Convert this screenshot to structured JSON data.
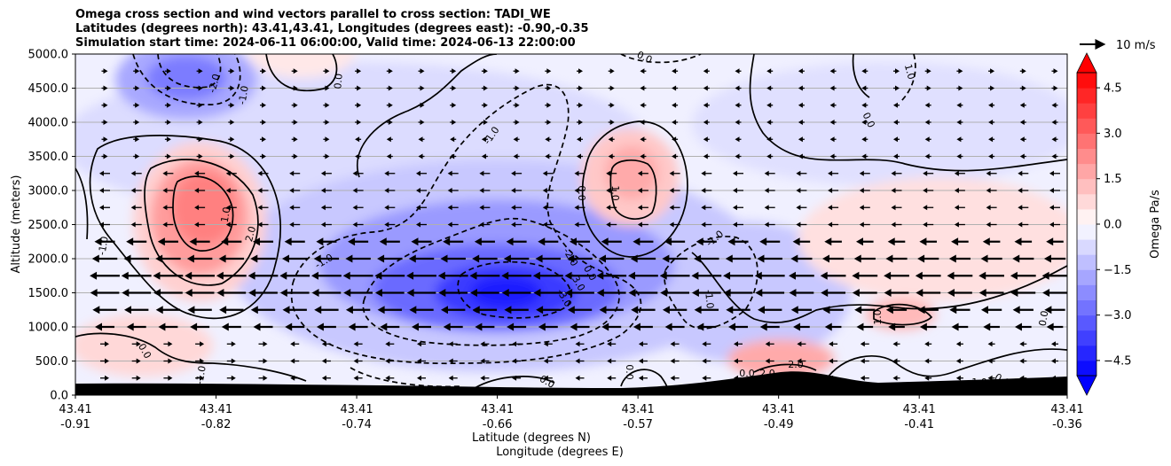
{
  "chart_data": {
    "type": "contour",
    "title_lines": [
      "Omega cross section and wind vectors parallel to cross section: TADI_WE",
      "Latitudes (degrees north): 43.41,43.41, Longitudes (degrees east): -0.90,-0.35",
      "Simulation start time: 2024-06-11 06:00:00, Valid time: 2024-06-13 22:00:00"
    ],
    "ylabel": "Altitude (meters)",
    "xlabel_lat": "Latitude (degrees N)",
    "xlabel_lon": "Longitude (degrees E)",
    "ylim": [
      0,
      5000
    ],
    "y_ticks": [
      "0.0",
      "500.0",
      "1000.0",
      "1500.0",
      "2000.0",
      "2500.0",
      "3000.0",
      "3500.0",
      "4000.0",
      "4500.0",
      "5000.0"
    ],
    "x_ticks": [
      {
        "lat": "43.41",
        "lon": "-0.91"
      },
      {
        "lat": "43.41",
        "lon": "-0.82"
      },
      {
        "lat": "43.41",
        "lon": "-0.74"
      },
      {
        "lat": "43.41",
        "lon": "-0.66"
      },
      {
        "lat": "43.41",
        "lon": "-0.57"
      },
      {
        "lat": "43.41",
        "lon": "-0.49"
      },
      {
        "lat": "43.41",
        "lon": "-0.41"
      },
      {
        "lat": "43.41",
        "lon": "-0.36"
      }
    ],
    "x_tick_fracs": [
      0,
      0.1418,
      0.2836,
      0.4254,
      0.5672,
      0.709,
      0.8508,
      1.0
    ],
    "colorbar": {
      "label": "Omega Pa/s",
      "range": [
        -5,
        5
      ],
      "ticks": [
        "4.5",
        "3.0",
        "1.5",
        "0.0",
        "−1.5",
        "−3.0",
        "−4.5"
      ],
      "tick_values": [
        4.5,
        3.0,
        1.5,
        0.0,
        -1.5,
        -3.0,
        -4.5
      ],
      "levels": 20,
      "extend": "both"
    },
    "quiver_key": {
      "label": "10 m/s"
    },
    "grid": "horizontal",
    "contour_labels": [
      "-2.0",
      "-1.0",
      "0.0",
      "-1.0",
      "0.0",
      "-1.0",
      "1.0",
      "2.0",
      "1.0",
      "-1.0",
      "0.0",
      "1.0",
      "0.0",
      "-1.0",
      "-2.0",
      "-1.0",
      "0.0",
      "-1.0",
      "0.0",
      "-3.0",
      "-3.0",
      "1.0",
      "0.0",
      "2.0",
      "2.0",
      "0.0",
      "0.0",
      "1.0",
      "0.0",
      "0.0"
    ],
    "cells": [
      {
        "omega": -2.5,
        "area": "upper-left descent cell near 4600 m"
      },
      {
        "omega": 2.8,
        "area": "left ascent core 2300-3100 m"
      },
      {
        "omega": -4.8,
        "area": "central descent core near 1500 m"
      },
      {
        "omega": 1.8,
        "area": "upper-center ascent 2700-3300 m"
      },
      {
        "omega": 1.0,
        "area": "lower-right ascent near 1200 m"
      },
      {
        "omega": 2.2,
        "area": "near-surface ascent near 400 m"
      }
    ],
    "wind_note": "easterly flow strongest 1000-2300 m"
  },
  "colors": {
    "descent": "#0000ff",
    "ascent": "#ff0000",
    "neutral": "#ffffff",
    "terrain": "#000000"
  }
}
